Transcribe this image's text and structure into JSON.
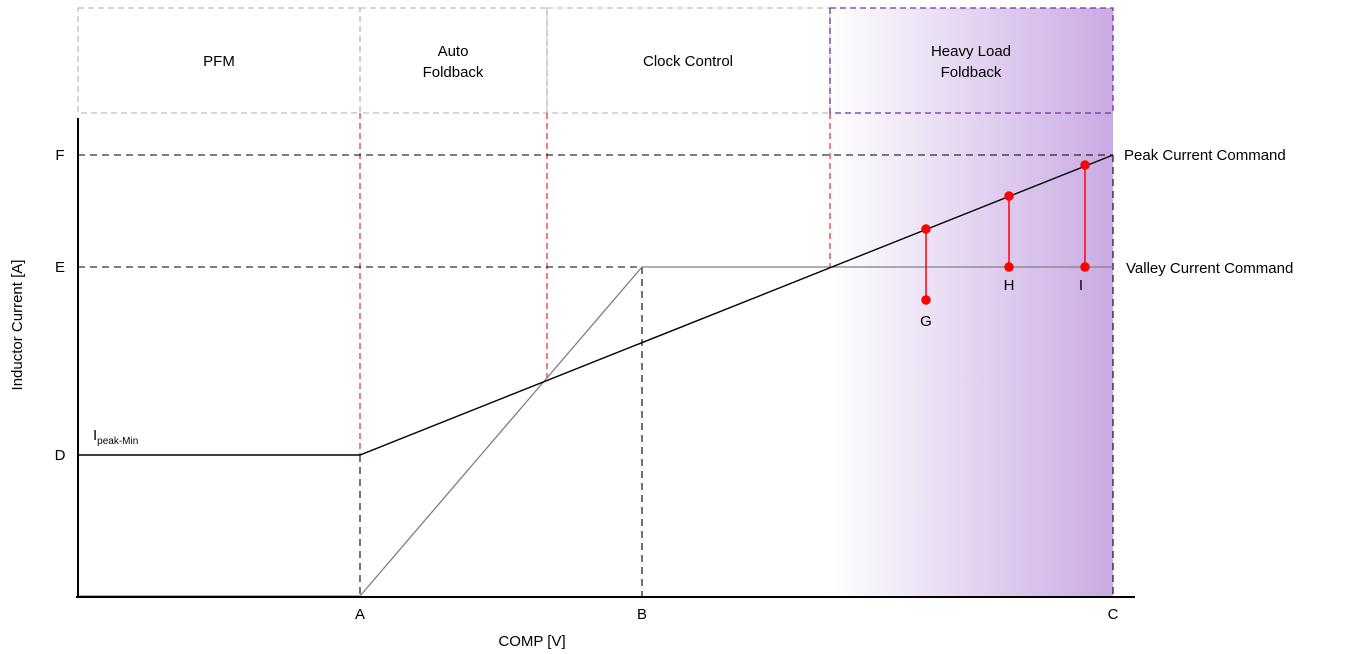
{
  "regions": [
    {
      "id": "pfm",
      "lines": [
        "PFM"
      ]
    },
    {
      "id": "auto-foldback",
      "lines": [
        "Auto",
        "Foldback"
      ]
    },
    {
      "id": "clock-control",
      "lines": [
        "Clock Control"
      ]
    },
    {
      "id": "heavy-load-foldback",
      "lines": [
        "Heavy Load",
        "Foldback"
      ]
    }
  ],
  "axes": {
    "x_title": "COMP [V]",
    "y_title": "Inductor Current [A]",
    "x_ticks": [
      "A",
      "B",
      "C"
    ],
    "y_ticks": [
      "F",
      "E",
      "D"
    ]
  },
  "curves": {
    "peak_label": "Peak Current Command",
    "valley_label": "Valley Current Command",
    "ipeak_min_main": "I",
    "ipeak_min_sub": "peak-Min"
  },
  "points": [
    "G",
    "H",
    "I"
  ],
  "colors": {
    "axis": "#000000",
    "peak_line": "#000000",
    "valley_line": "#808080",
    "guide_dash": "#000000",
    "region_divider": "#e8383b",
    "region_border": "#bfbfbf",
    "heavy_border": "#7030a0",
    "heavy_gradient_end": "#c9aae3",
    "marker": "#ff0000"
  }
}
